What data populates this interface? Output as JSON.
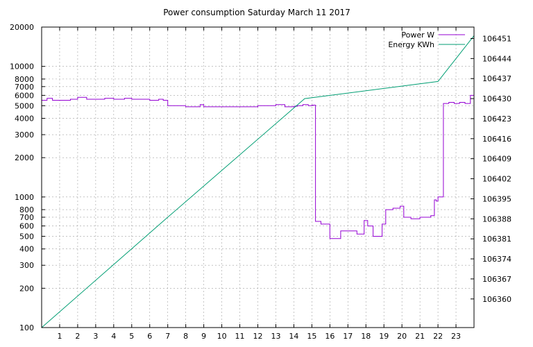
{
  "chart_data": {
    "type": "line",
    "title": "Power consumption Saturday March 11 2017",
    "xlabel": "",
    "ylabel": "",
    "y2label": "",
    "x_range": [
      0,
      24
    ],
    "x_ticks": [
      1,
      2,
      3,
      4,
      5,
      6,
      7,
      8,
      9,
      10,
      11,
      12,
      13,
      14,
      15,
      16,
      17,
      18,
      19,
      20,
      21,
      22,
      23
    ],
    "y_scale": "log",
    "y_range": [
      100,
      20000
    ],
    "y_ticks": [
      100,
      200,
      300,
      400,
      500,
      600,
      700,
      800,
      1000,
      2000,
      3000,
      4000,
      5000,
      6000,
      7000,
      8000,
      10000,
      20000
    ],
    "y2_range": [
      106350,
      106455
    ],
    "y2_ticks": [
      106360,
      106367,
      106374,
      106381,
      106388,
      106395,
      106402,
      106409,
      106416,
      106423,
      106430,
      106437,
      106444,
      106451
    ],
    "grid": true,
    "legend_position": "top-right",
    "series": [
      {
        "name": "Power W",
        "axis": "left",
        "color": "#9400d3",
        "x": [
          0.0,
          0.3,
          0.6,
          1.0,
          1.6,
          2.0,
          2.5,
          3.0,
          3.5,
          4.0,
          4.6,
          5.0,
          5.5,
          6.0,
          6.5,
          6.75,
          7.0,
          8.0,
          8.8,
          9.0,
          10.0,
          11.0,
          12.0,
          12.5,
          13.0,
          13.5,
          13.7,
          14.0,
          14.2,
          14.5,
          14.8,
          15.0,
          15.2,
          15.5,
          16.0,
          16.3,
          16.6,
          17.0,
          17.5,
          17.9,
          18.1,
          18.4,
          18.9,
          19.1,
          19.5,
          19.9,
          20.1,
          20.5,
          21.0,
          21.3,
          21.6,
          21.8,
          21.9,
          22.0,
          22.3,
          22.6,
          22.9,
          23.2,
          23.5,
          23.8,
          24.0
        ],
        "values": [
          5500,
          5700,
          5500,
          5500,
          5600,
          5800,
          5600,
          5600,
          5700,
          5600,
          5700,
          5600,
          5600,
          5500,
          5600,
          5500,
          5000,
          4900,
          5100,
          4900,
          4900,
          4900,
          5000,
          5000,
          5100,
          4900,
          4900,
          4950,
          5000,
          5100,
          5000,
          5050,
          650,
          620,
          480,
          480,
          550,
          550,
          520,
          660,
          600,
          500,
          620,
          800,
          820,
          850,
          700,
          680,
          700,
          700,
          720,
          950,
          930,
          1000,
          5200,
          5300,
          5200,
          5300,
          5200,
          6000,
          5800
        ]
      },
      {
        "name": "Energy KWh",
        "axis": "right",
        "color": "#009e73",
        "x": [
          0,
          6.9,
          14.6,
          22.0,
          24.0
        ],
        "values": [
          106350,
          106388,
          106430,
          106436,
          106452
        ]
      }
    ]
  }
}
